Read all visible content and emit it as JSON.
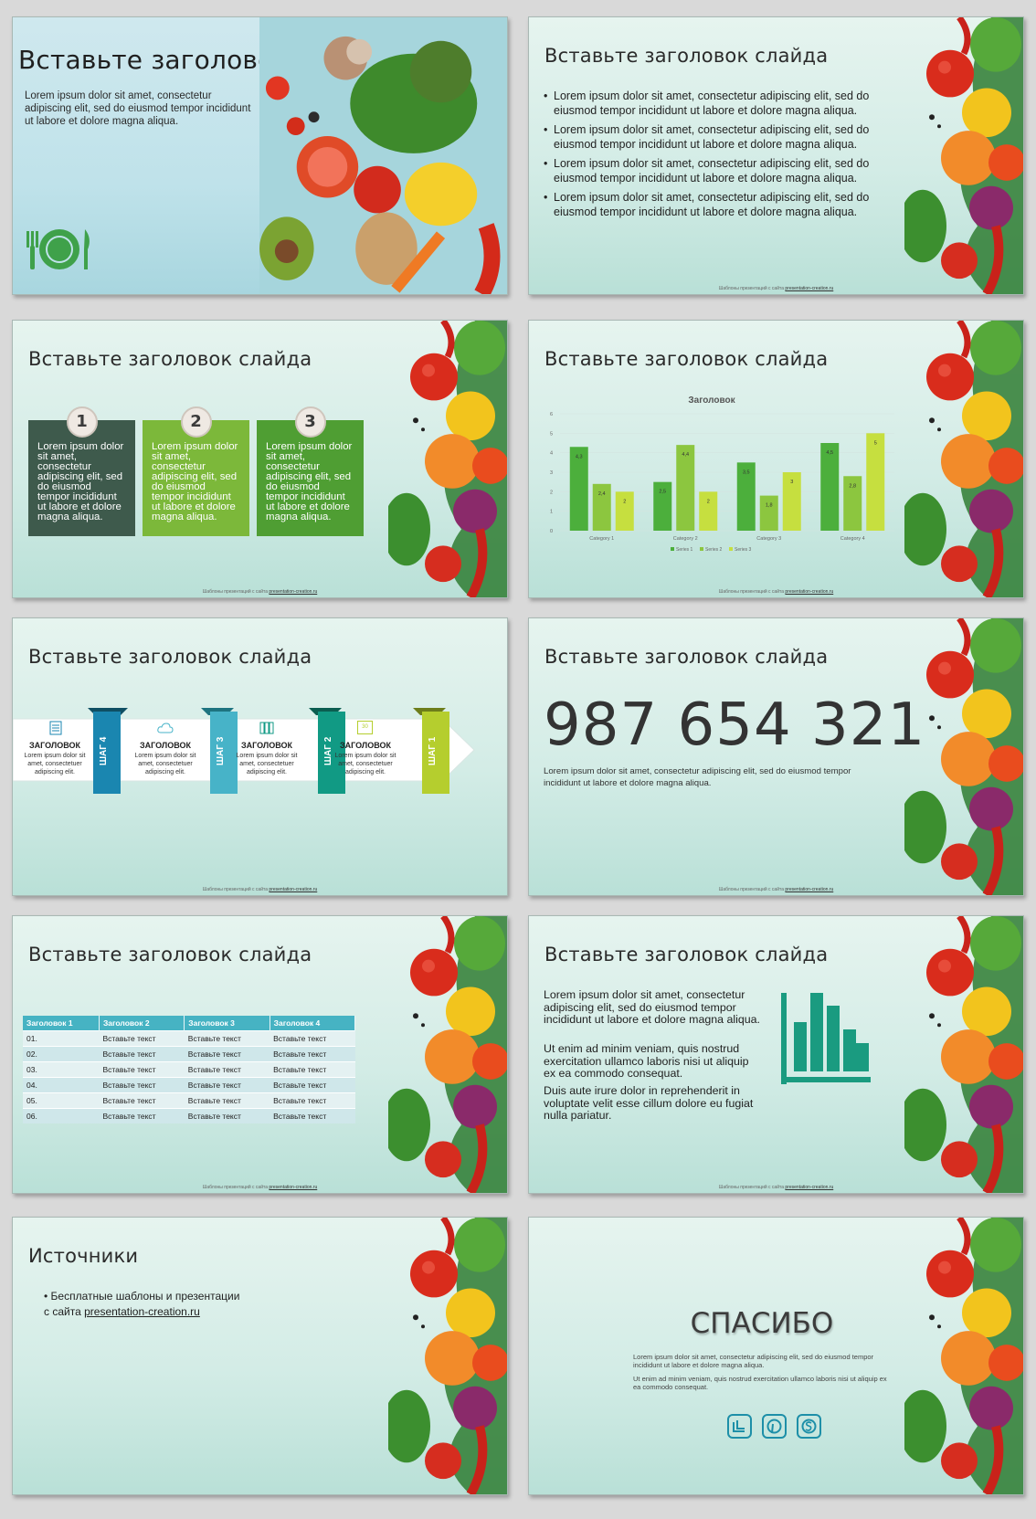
{
  "footer": {
    "prefix": "Шаблоны презентаций с сайта",
    "link": "presentation-creation.ru"
  },
  "slide1": {
    "title": "Вставьте заголовок",
    "text": "Lorem ipsum dolor sit amet, consectetur adipiscing elit, sed do eiusmod tempor incididunt ut labore et dolore magna aliqua."
  },
  "slide2": {
    "title": "Вставьте заголовок слайда",
    "bullets": [
      "Lorem ipsum dolor sit amet, consectetur adipiscing elit, sed do eiusmod tempor incididunt ut labore et dolore magna aliqua.",
      "Lorem ipsum dolor sit amet, consectetur adipiscing elit, sed do eiusmod tempor incididunt ut labore et dolore magna aliqua.",
      "Lorem ipsum dolor sit amet, consectetur adipiscing elit, sed do eiusmod tempor incididunt ut labore et dolore magna aliqua.",
      "Lorem ipsum dolor sit amet, consectetur adipiscing elit, sed do eiusmod tempor incididunt ut labore et dolore magna aliqua."
    ]
  },
  "slide3": {
    "title": "Вставьте заголовок слайда",
    "boxes": [
      {
        "num": "1",
        "text": "Lorem ipsum dolor sit amet, consectetur adipiscing elit, sed do eiusmod tempor incididunt ut labore et dolore magna aliqua.",
        "color": "#3e5a4c"
      },
      {
        "num": "2",
        "text": "Lorem ipsum dolor sit amet, consectetur adipiscing elit, sed do eiusmod tempor incididunt ut labore et dolore magna aliqua.",
        "color": "#7cb83a"
      },
      {
        "num": "3",
        "text": "Lorem ipsum dolor sit amet, consectetur adipiscing elit, sed do eiusmod tempor incididunt ut labore et dolore magna aliqua.",
        "color": "#4f9e33"
      }
    ]
  },
  "slide4": {
    "title": "Вставьте заголовок слайда"
  },
  "chart_data": {
    "type": "bar",
    "title": "Заголовок",
    "categories": [
      "Category 1",
      "Category 2",
      "Category 3",
      "Category 4"
    ],
    "series": [
      {
        "name": "Series 1",
        "values": [
          4.3,
          2.5,
          3.5,
          4.5
        ],
        "color": "#4caf3c"
      },
      {
        "name": "Series 2",
        "values": [
          2.4,
          4.4,
          1.8,
          2.8
        ],
        "color": "#8cc63f"
      },
      {
        "name": "Series 3",
        "values": [
          2,
          2,
          3,
          5
        ],
        "color": "#c6df3f"
      }
    ],
    "ylim": [
      0,
      6
    ],
    "yticks": [
      "0",
      "1",
      "2",
      "3",
      "4",
      "5",
      "6"
    ],
    "data_labels": [
      [
        "4,3",
        "2,5",
        "3,5",
        "4,5"
      ],
      [
        "2,4",
        "4,4",
        "1,8",
        "2,8"
      ],
      [
        "2",
        "2",
        "3",
        "5"
      ]
    ],
    "legend": "bottom",
    "xlabel": "",
    "ylabel": ""
  },
  "slide5": {
    "title": "Вставьте заголовок слайда",
    "steps": [
      {
        "head": "ЗАГОЛОВОК",
        "text": "Lorem ipsum dolor sit amet, consectetuer adipiscing elit.",
        "tag": "ШАГ 4",
        "color": "#1a86b0",
        "icon": "document-icon"
      },
      {
        "head": "ЗАГОЛОВОК",
        "text": "Lorem ipsum dolor sit amet, consectetuer adipiscing elit.",
        "tag": "ШАГ 3",
        "color": "#47b3c8",
        "icon": "cloud-icon"
      },
      {
        "head": "ЗАГОЛОВОК",
        "text": "Lorem ipsum dolor sit amet, consectetuer adipiscing elit.",
        "tag": "ШАГ 2",
        "color": "#119a84",
        "icon": "books-icon"
      },
      {
        "head": "ЗАГОЛОВОК",
        "text": "Lorem ipsum dolor sit amet, consectetuer adipiscing elit.",
        "tag": "ШАГ 1",
        "color": "#b5ce2e",
        "icon": "calendar-icon"
      }
    ],
    "calendar_num": "30"
  },
  "slide6": {
    "title": "Вставьте заголовок слайда",
    "number": "987 654 321",
    "text": "Lorem ipsum dolor sit amet, consectetur adipiscing elit, sed do eiusmod tempor incididunt ut labore et dolore magna aliqua."
  },
  "slide7": {
    "title": "Вставьте заголовок слайда",
    "headers": [
      "Заголовок 1",
      "Заголовок 2",
      "Заголовок 3",
      "Заголовок 4"
    ],
    "rows": [
      [
        "01.",
        "Вставьте текст",
        "Вставьте текст",
        "Вставьте текст"
      ],
      [
        "02.",
        "Вставьте текст",
        "Вставьте текст",
        "Вставьте текст"
      ],
      [
        "03.",
        "Вставьте текст",
        "Вставьте текст",
        "Вставьте текст"
      ],
      [
        "04.",
        "Вставьте текст",
        "Вставьте текст",
        "Вставьте текст"
      ],
      [
        "05.",
        "Вставьте текст",
        "Вставьте текст",
        "Вставьте текст"
      ],
      [
        "06.",
        "Вставьте текст",
        "Вставьте текст",
        "Вставьте текст"
      ]
    ]
  },
  "slide8": {
    "title": "Вставьте заголовок слайда",
    "p1": "Lorem ipsum dolor sit amet, consectetur adipiscing elit, sed do eiusmod tempor incididunt ut labore et dolore magna aliqua.",
    "p2": "Ut enim ad minim veniam, quis nostrud exercitation ullamco laboris nisi ut aliquip ex ea commodo consequat.",
    "p3": "Duis aute irure dolor in reprehenderit in voluptate velit esse cillum dolore eu fugiat nulla pariatur."
  },
  "slide9": {
    "title": "Источники",
    "line1": "Бесплатные шаблоны и презентации",
    "line2_prefix": "с сайта",
    "link": "presentation-creation.ru"
  },
  "slide10": {
    "title": "СПАСИБО",
    "p1": "Lorem ipsum dolor sit amet, consectetur adipiscing elit, sed do eiusmod tempor incididunt ut labore et dolore magna aliqua.",
    "p2": "Ut enim ad minim veniam, quis nostrud exercitation ullamco laboris nisi ut aliquip ex ea commodo consequat.",
    "social": [
      "twitter-icon",
      "pinterest-icon",
      "skype-icon"
    ]
  },
  "colors": {
    "accent_teal": "#1a9b80",
    "social_blue": "#1d8fa8"
  }
}
